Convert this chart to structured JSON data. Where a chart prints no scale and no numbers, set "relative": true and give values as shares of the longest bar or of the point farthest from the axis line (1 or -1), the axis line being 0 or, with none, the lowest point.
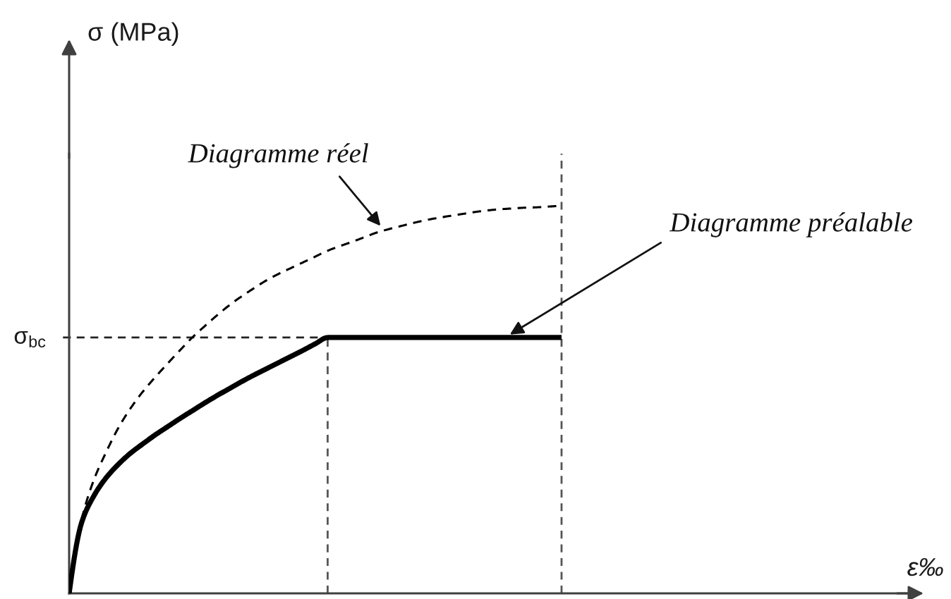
{
  "chart_data": {
    "type": "line",
    "relative": true,
    "legend": false,
    "xlabel": "ε‰",
    "annotations": [
      "σ (MPa)"
    ],
    "categories": [
      null,
      null,
      null,
      null,
      null,
      null,
      null,
      null,
      null,
      null,
      null,
      null,
      null,
      null,
      null,
      null,
      null,
      null,
      null,
      null,
      null,
      null,
      null,
      null,
      null,
      null,
      null,
      null,
      null,
      null,
      null,
      null,
      null,
      null,
      null,
      null,
      null,
      null,
      null,
      null,
      null,
      null,
      null,
      null,
      null,
      null,
      null,
      null,
      null,
      null,
      null,
      null,
      null,
      null,
      null,
      null,
      null,
      null,
      null,
      null,
      null,
      null,
      null,
      null,
      null,
      null,
      null,
      null,
      null,
      null
    ],
    "series": [
      {
        "name": "Diagramme réel",
        "color": "#000000",
        "line_style": "dashed",
        "values": [
          0,
          0.188,
          0.292,
          0.364,
          0.427,
          0.478,
          0.521,
          0.558,
          0.593,
          0.627,
          0.66,
          0.689,
          0.717,
          0.743,
          0.766,
          0.787,
          0.807,
          0.824,
          0.839,
          0.854,
          0.869,
          0.884,
          0.896,
          0.907,
          0.919,
          0.931,
          0.94,
          0.948,
          0.956,
          0.963,
          0.969,
          0.974,
          0.979,
          0.984,
          0.988,
          0.991,
          0.993,
          0.995,
          0.996,
          0.998,
          1.0,
          null,
          null,
          null,
          null,
          null,
          null,
          null,
          null,
          null,
          null,
          null,
          null,
          null,
          null,
          null,
          null,
          null,
          null,
          null,
          null,
          null,
          null,
          null,
          null,
          null,
          null,
          null,
          null,
          null
        ]
      },
      {
        "name": "Diagramme préalable",
        "color": "#000000",
        "line_style": "solid",
        "values": [
          0,
          0.181,
          0.251,
          0.298,
          0.333,
          0.362,
          0.386,
          0.409,
          0.43,
          0.451,
          0.471,
          0.491,
          0.51,
          0.528,
          0.546,
          0.563,
          0.579,
          0.595,
          0.611,
          0.627,
          0.644,
          0.66,
          0.66,
          0.66,
          0.66,
          0.66,
          0.66,
          0.66,
          0.66,
          0.66,
          0.66,
          0.66,
          0.66,
          0.66,
          0.66,
          0.66,
          0.66,
          0.66,
          0.66,
          0.66,
          0.66,
          null,
          null,
          null,
          null,
          null,
          null,
          null,
          null,
          null,
          null,
          null,
          null,
          null,
          null,
          null,
          null,
          null,
          null,
          null,
          null,
          null,
          null,
          null,
          null,
          null,
          null,
          null,
          null,
          null
        ]
      }
    ],
    "ref_lines": [
      {
        "axis": "y",
        "value": 0.66,
        "label": "σ$_{bc}$",
        "line_style": "dashed",
        "color": "#222222"
      }
    ]
  }
}
